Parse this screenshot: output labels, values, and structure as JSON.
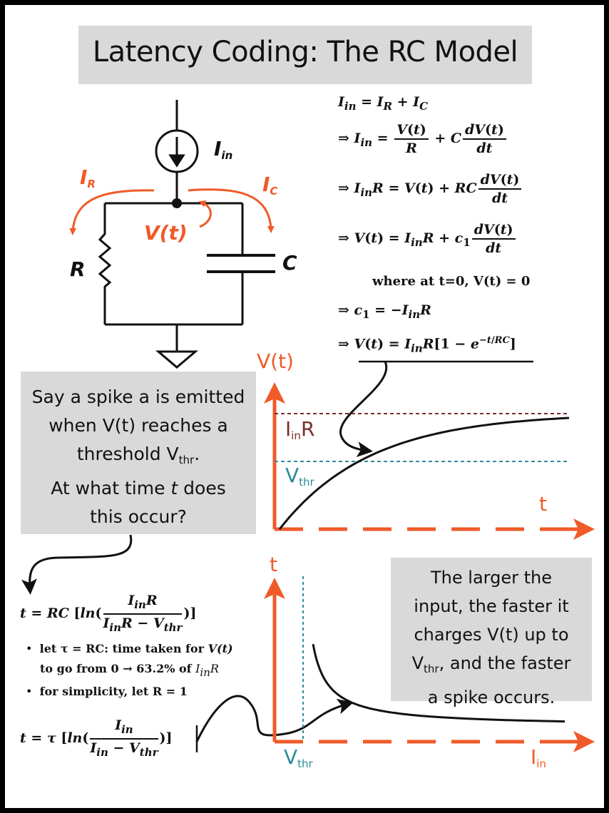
{
  "title": "Latency Coding: The RC Model",
  "circuit": {
    "i_in": "I",
    "i_in_sub": "in",
    "i_r": "I",
    "i_r_sub": "R",
    "i_c": "I",
    "i_c_sub": "C",
    "v_t": "V(t)",
    "r": "R",
    "c": "C"
  },
  "derivation": {
    "eq1": "I_in = I_R + I_C",
    "where": "where at t=0, V(t) = 0"
  },
  "question": {
    "line1": "Say a spike a is emitted",
    "line2": "when V(t) reaches a",
    "line3_pre": "threshold V",
    "line3_sub": "thr",
    "line3_post": ".",
    "line4_pre": "At what time ",
    "line4_t": "t",
    "line4_post": " does",
    "line5": "this occur?"
  },
  "bullets": {
    "b1_pre": "let τ = RC: time taken for ",
    "b1_v": "V(t)",
    "b2_pre": "to go from 0 → 63.2% of ",
    "b2_v": "I",
    "b2_sub": "in",
    "b2_r": "R",
    "b3": "for simplicity, let R = 1"
  },
  "note": {
    "line1": "The larger the",
    "line2": "input, the faster it",
    "line3": "charges V(t) up to",
    "line4_pre": "V",
    "line4_sub": "thr",
    "line4_post": ", and the faster",
    "line5": "a spike occurs."
  },
  "plot_top": {
    "y_label": "V(t)",
    "x_label": "t",
    "asymptote_label": "I",
    "asymptote_sub": "in",
    "asymptote_r": "R",
    "threshold_label": "V",
    "threshold_sub": "thr"
  },
  "plot_bottom": {
    "y_label": "t",
    "x_label": "I",
    "x_sub": "in",
    "threshold_label": "V",
    "threshold_sub": "thr"
  },
  "colors": {
    "accent": "#f05a28",
    "asymptote": "#7a2e2e",
    "threshold": "#2a8c9a",
    "box": "#d9d9d9"
  }
}
